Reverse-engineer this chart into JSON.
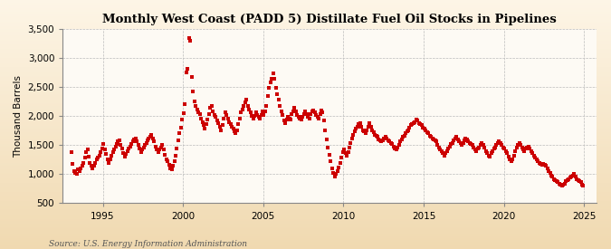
{
  "title": "Monthly West Coast (PADD 5) Distillate Fuel Oil Stocks in Pipelines",
  "ylabel": "Thousand Barrels",
  "source": "Source: U.S. Energy Information Administration",
  "bg_top_color": "#FDF5E6",
  "bg_bottom_color": "#F0D9B0",
  "plot_area_color": "#FDFAF4",
  "marker_color": "#CC0000",
  "grid_color": "#BBBBBB",
  "ylim": [
    500,
    3500
  ],
  "yticks": [
    500,
    1000,
    1500,
    2000,
    2500,
    3000,
    3500
  ],
  "xticks": [
    1995,
    2000,
    2005,
    2010,
    2015,
    2020,
    2025
  ],
  "xmin": 1992.5,
  "xmax": 2025.8,
  "data": {
    "1993": [
      1380,
      1180,
      1050,
      1020,
      1000,
      1080,
      1050,
      1100,
      1150,
      1200,
      1280,
      1380
    ],
    "1994": [
      1420,
      1300,
      1200,
      1150,
      1100,
      1150,
      1200,
      1250,
      1280,
      1320,
      1380,
      1450
    ],
    "1995": [
      1520,
      1420,
      1350,
      1250,
      1200,
      1260,
      1320,
      1380,
      1420,
      1480,
      1520,
      1560
    ],
    "1996": [
      1580,
      1500,
      1440,
      1360,
      1300,
      1350,
      1400,
      1440,
      1480,
      1520,
      1560,
      1600
    ],
    "1997": [
      1620,
      1560,
      1500,
      1440,
      1380,
      1420,
      1460,
      1500,
      1540,
      1580,
      1620,
      1650
    ],
    "1998": [
      1680,
      1620,
      1560,
      1480,
      1420,
      1380,
      1420,
      1460,
      1500,
      1420,
      1340,
      1260
    ],
    "1999": [
      1220,
      1160,
      1100,
      1080,
      1140,
      1220,
      1320,
      1440,
      1580,
      1700,
      1800,
      1940
    ],
    "2000": [
      2050,
      2200,
      2750,
      2820,
      3340,
      3290,
      2680,
      2420,
      2260,
      2180,
      2120,
      2060
    ],
    "2001": [
      2040,
      1960,
      1900,
      1840,
      1780,
      1860,
      1940,
      2040,
      2140,
      2180,
      2080,
      2020
    ],
    "2002": [
      1980,
      1930,
      1880,
      1820,
      1760,
      1840,
      1960,
      2060,
      2020,
      1960,
      1900,
      1860
    ],
    "2003": [
      1820,
      1780,
      1740,
      1700,
      1760,
      1860,
      1960,
      2060,
      2120,
      2180,
      2240,
      2280
    ],
    "2004": [
      2180,
      2120,
      2060,
      2000,
      1960,
      2000,
      2060,
      2020,
      1980,
      1960,
      2020,
      2080
    ],
    "2005": [
      2020,
      2080,
      2180,
      2340,
      2480,
      2580,
      2640,
      2740,
      2640,
      2480,
      2380,
      2280
    ],
    "2006": [
      2180,
      2080,
      2020,
      1920,
      1880,
      1940,
      1980,
      1960,
      1940,
      2040,
      2080,
      2140
    ],
    "2007": [
      2080,
      2020,
      1980,
      1960,
      1940,
      1980,
      2040,
      2080,
      2040,
      1980,
      1960,
      2040
    ],
    "2008": [
      2080,
      2100,
      2060,
      2020,
      1980,
      1960,
      2040,
      2100,
      2060,
      1920,
      1760,
      1600
    ],
    "2009": [
      1460,
      1340,
      1220,
      1100,
      1020,
      960,
      1000,
      1060,
      1120,
      1200,
      1280,
      1380
    ],
    "2010": [
      1420,
      1360,
      1320,
      1380,
      1460,
      1540,
      1620,
      1680,
      1740,
      1780,
      1820,
      1860
    ],
    "2011": [
      1880,
      1820,
      1760,
      1740,
      1700,
      1760,
      1820,
      1880,
      1820,
      1760,
      1720,
      1680
    ],
    "2012": [
      1660,
      1640,
      1600,
      1580,
      1560,
      1580,
      1620,
      1640,
      1620,
      1580,
      1560,
      1540
    ],
    "2013": [
      1520,
      1480,
      1440,
      1420,
      1460,
      1500,
      1560,
      1600,
      1640,
      1660,
      1700,
      1740
    ],
    "2014": [
      1760,
      1800,
      1840,
      1860,
      1880,
      1900,
      1940,
      1920,
      1880,
      1860,
      1840,
      1800
    ],
    "2015": [
      1780,
      1760,
      1720,
      1700,
      1660,
      1640,
      1620,
      1600,
      1580,
      1560,
      1500,
      1460
    ],
    "2016": [
      1420,
      1400,
      1360,
      1320,
      1360,
      1400,
      1440,
      1480,
      1520,
      1540,
      1580,
      1620
    ],
    "2017": [
      1640,
      1600,
      1560,
      1540,
      1500,
      1540,
      1580,
      1620,
      1600,
      1560,
      1540,
      1520
    ],
    "2018": [
      1500,
      1460,
      1420,
      1400,
      1440,
      1460,
      1500,
      1540,
      1500,
      1460,
      1400,
      1360
    ],
    "2019": [
      1320,
      1300,
      1360,
      1400,
      1440,
      1460,
      1500,
      1540,
      1560,
      1540,
      1500,
      1460
    ],
    "2020": [
      1440,
      1400,
      1360,
      1300,
      1260,
      1220,
      1260,
      1320,
      1400,
      1460,
      1500,
      1540
    ],
    "2021": [
      1500,
      1460,
      1420,
      1400,
      1440,
      1460,
      1480,
      1440,
      1400,
      1360,
      1320,
      1280
    ],
    "2022": [
      1260,
      1220,
      1200,
      1180,
      1160,
      1180,
      1160,
      1140,
      1100,
      1060,
      1020,
      980
    ],
    "2023": [
      960,
      920,
      900,
      880,
      860,
      840,
      820,
      800,
      820,
      840,
      880,
      900
    ],
    "2024": [
      920,
      940,
      960,
      980,
      1000,
      960,
      920,
      900,
      880,
      860,
      820,
      800
    ]
  }
}
